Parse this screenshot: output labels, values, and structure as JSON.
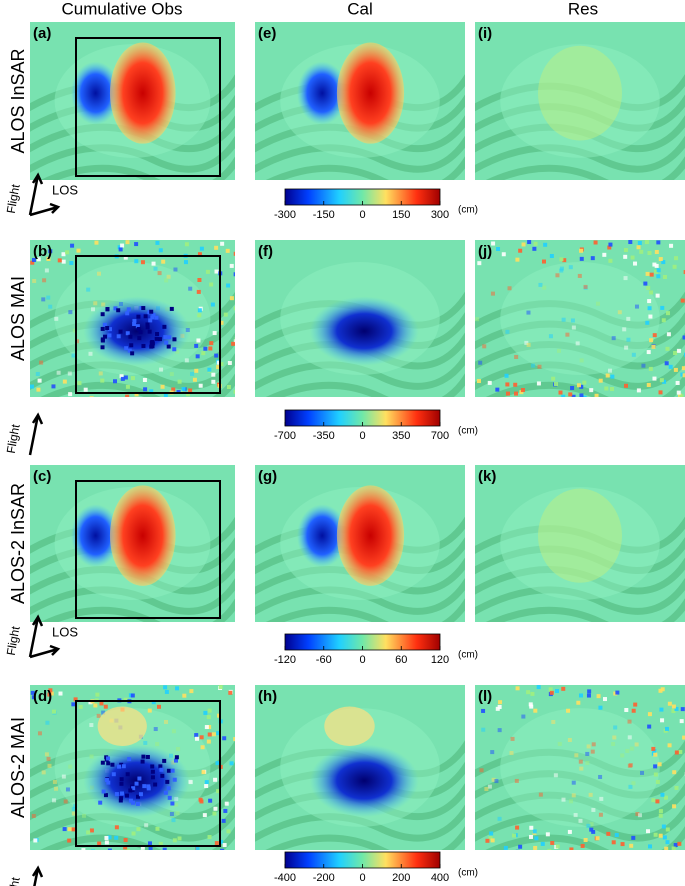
{
  "columns": [
    "Cumulative Obs",
    "Cal",
    "Res"
  ],
  "rows": [
    {
      "label": "ALOS InSAR",
      "panels": [
        "(a)",
        "(e)",
        "(i)"
      ],
      "arrows": [
        "Flight",
        "LOS"
      ],
      "colorbar": {
        "lim": [
          -300,
          300
        ],
        "ticks": [
          -300,
          -150,
          0,
          150,
          300
        ],
        "unit": "(cm)"
      }
    },
    {
      "label": "ALOS MAI",
      "panels": [
        "(b)",
        "(f)",
        "(j)"
      ],
      "arrows": [
        "Flight"
      ],
      "colorbar": {
        "lim": [
          -700,
          700
        ],
        "ticks": [
          -700,
          -350,
          0,
          350,
          700
        ],
        "unit": "(cm)"
      }
    },
    {
      "label": "ALOS-2 InSAR",
      "panels": [
        "(c)",
        "(g)",
        "(k)"
      ],
      "arrows": [
        "Flight",
        "LOS"
      ],
      "colorbar": {
        "lim": [
          -120,
          120
        ],
        "ticks": [
          -120,
          -60,
          0,
          60,
          120
        ],
        "unit": "(cm)"
      }
    },
    {
      "label": "ALOS-2 MAI",
      "panels": [
        "(d)",
        "(h)",
        "(l)"
      ],
      "arrows": [
        "Flight"
      ],
      "colorbar": {
        "lim": [
          -400,
          400
        ],
        "ticks": [
          -400,
          -200,
          0,
          200,
          400
        ],
        "unit": "(cm)"
      }
    }
  ]
}
